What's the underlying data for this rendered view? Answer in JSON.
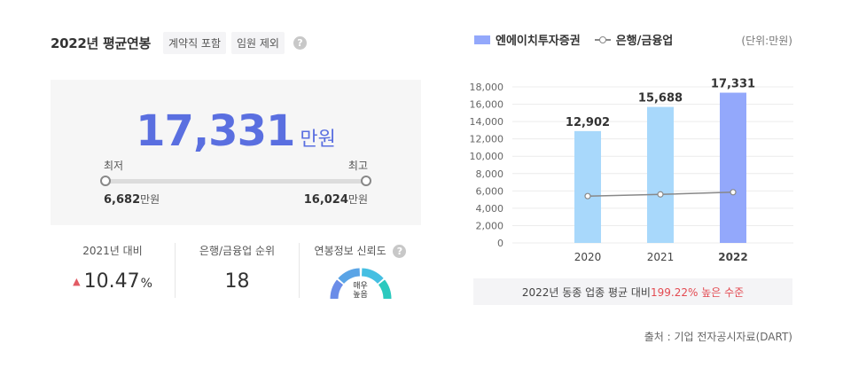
{
  "header": {
    "title": "2022년 평균연봉",
    "tags": [
      "계약직 포함",
      "임원 제외"
    ],
    "help_icon": "question-icon"
  },
  "salary": {
    "value": "17,331",
    "unit": "만원",
    "min_label": "최저",
    "max_label": "최고",
    "min_value": "6,682",
    "max_value": "16,024",
    "value_unit": "만원"
  },
  "stats": {
    "yoy_label": "2021년 대비",
    "yoy_value": "10.47",
    "yoy_unit": "%",
    "yoy_direction_icon": "up-triangle-icon",
    "rank_label": "은행/금융업 순위",
    "rank_value": "18",
    "reliability_label": "연봉정보 신뢰도",
    "reliability_line1": "매우",
    "reliability_line2": "높음",
    "reliability_level": 1.0
  },
  "legend": {
    "company": "엔에이치투자증권",
    "industry": "은행/금융업",
    "unit_note": "(단위:만원)"
  },
  "colors": {
    "accent": "#5a6fe0",
    "bar": "#a8d8fb",
    "bar_highlight": "#93a8fb",
    "line": "#888888",
    "red": "#e34a51"
  },
  "chart_data": {
    "type": "bar",
    "categories": [
      "2020",
      "2021",
      "2022"
    ],
    "series": [
      {
        "name": "엔에이치투자증권",
        "values": [
          12902,
          15688,
          17331
        ],
        "value_labels": [
          "12,902",
          "15,688",
          "17,331"
        ]
      },
      {
        "name": "은행/금융업",
        "type": "line",
        "values": [
          5400,
          5600,
          5850
        ]
      }
    ],
    "yticks": [
      "18,000",
      "16,000",
      "14,000",
      "12,000",
      "10,000",
      "8,000",
      "6,000",
      "4,000",
      "2,000",
      "0"
    ],
    "ylim": [
      0,
      18000
    ],
    "grid": true
  },
  "note": {
    "prefix": "2022년 동종 업종 평균 대비 ",
    "highlight": "199.22% 높은 수준"
  },
  "source": "출처 : 기업 전자공시자료(DART)"
}
